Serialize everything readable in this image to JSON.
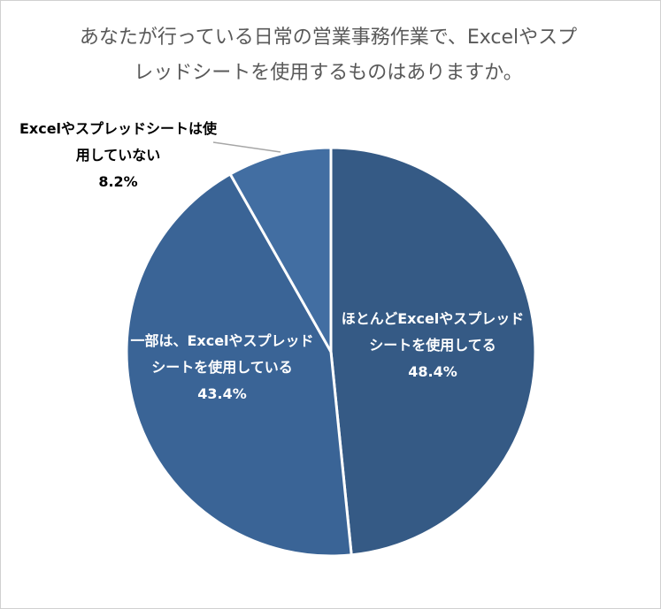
{
  "chart_data": {
    "type": "pie",
    "title": "あなたが行っている日常の営業事務作業で、Excelやスプレッドシートを使用するものはありますか。",
    "categories": [
      "ほとんどExcelやスプレッドシートを使用してる",
      "一部は、Excelやスプレッドシートを使用している",
      "Excelやスプレッドシートは使用していない"
    ],
    "values": [
      48.4,
      43.4,
      8.2
    ],
    "value_labels": [
      "48.4%",
      "43.4%",
      "8.2%"
    ],
    "colors": [
      "#355a85",
      "#3a6496",
      "#426ea2"
    ]
  }
}
